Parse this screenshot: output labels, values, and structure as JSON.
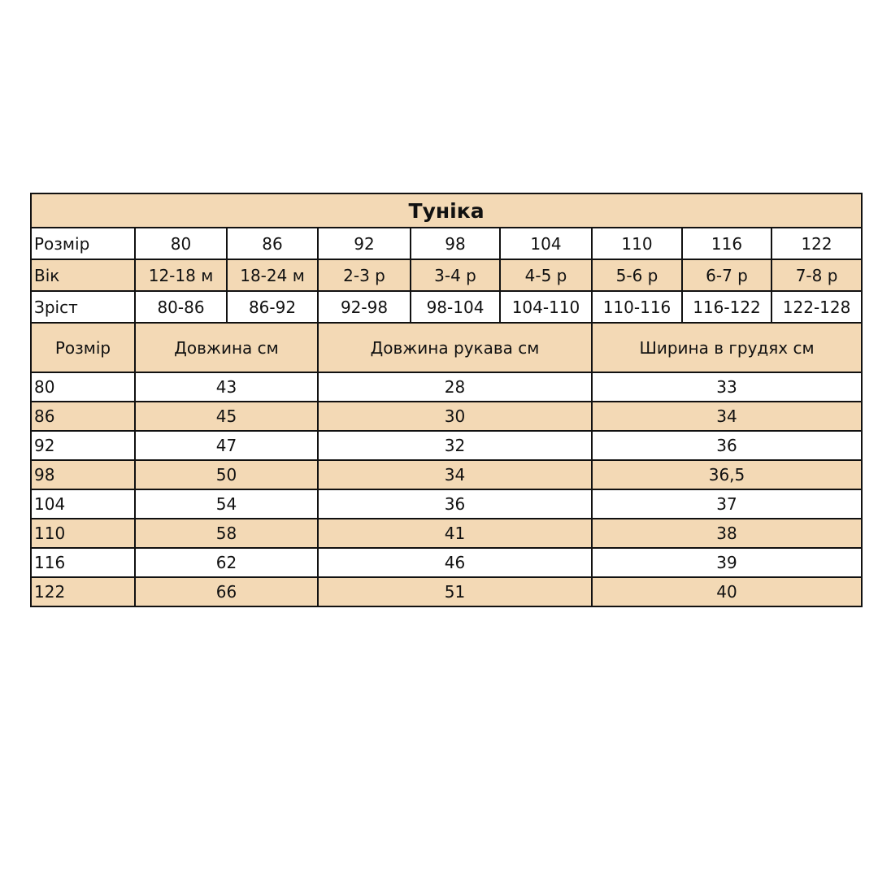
{
  "title": "Туніка",
  "size_row": {
    "label": "Розмір",
    "values": [
      "80",
      "86",
      "92",
      "98",
      "104",
      "110",
      "116",
      "122"
    ]
  },
  "age_row": {
    "label": "Вік",
    "values": [
      "12-18 м",
      "18-24 м",
      "2-3 р",
      "3-4 р",
      "4-5 р",
      "5-6 р",
      "6-7 р",
      "7-8 р"
    ]
  },
  "height_row": {
    "label": "Зріст",
    "values": [
      "80-86",
      "86-92",
      "92-98",
      "98-104",
      "104-110",
      "110-116",
      "116-122",
      "122-128"
    ]
  },
  "measurements": {
    "headers": [
      "Розмір",
      "Довжина см",
      "Довжина рукава см",
      "Ширина в грудях см"
    ],
    "rows": [
      [
        "80",
        "43",
        "28",
        "33"
      ],
      [
        "86",
        "45",
        "30",
        "34"
      ],
      [
        "92",
        "47",
        "32",
        "36"
      ],
      [
        "98",
        "50",
        "34",
        "36,5"
      ],
      [
        "104",
        "54",
        "36",
        "37"
      ],
      [
        "110",
        "58",
        "41",
        "38"
      ],
      [
        "116",
        "62",
        "46",
        "39"
      ],
      [
        "122",
        "66",
        "51",
        "40"
      ]
    ]
  },
  "colors": {
    "accent": "#f3d9b5",
    "border": "#111111"
  }
}
